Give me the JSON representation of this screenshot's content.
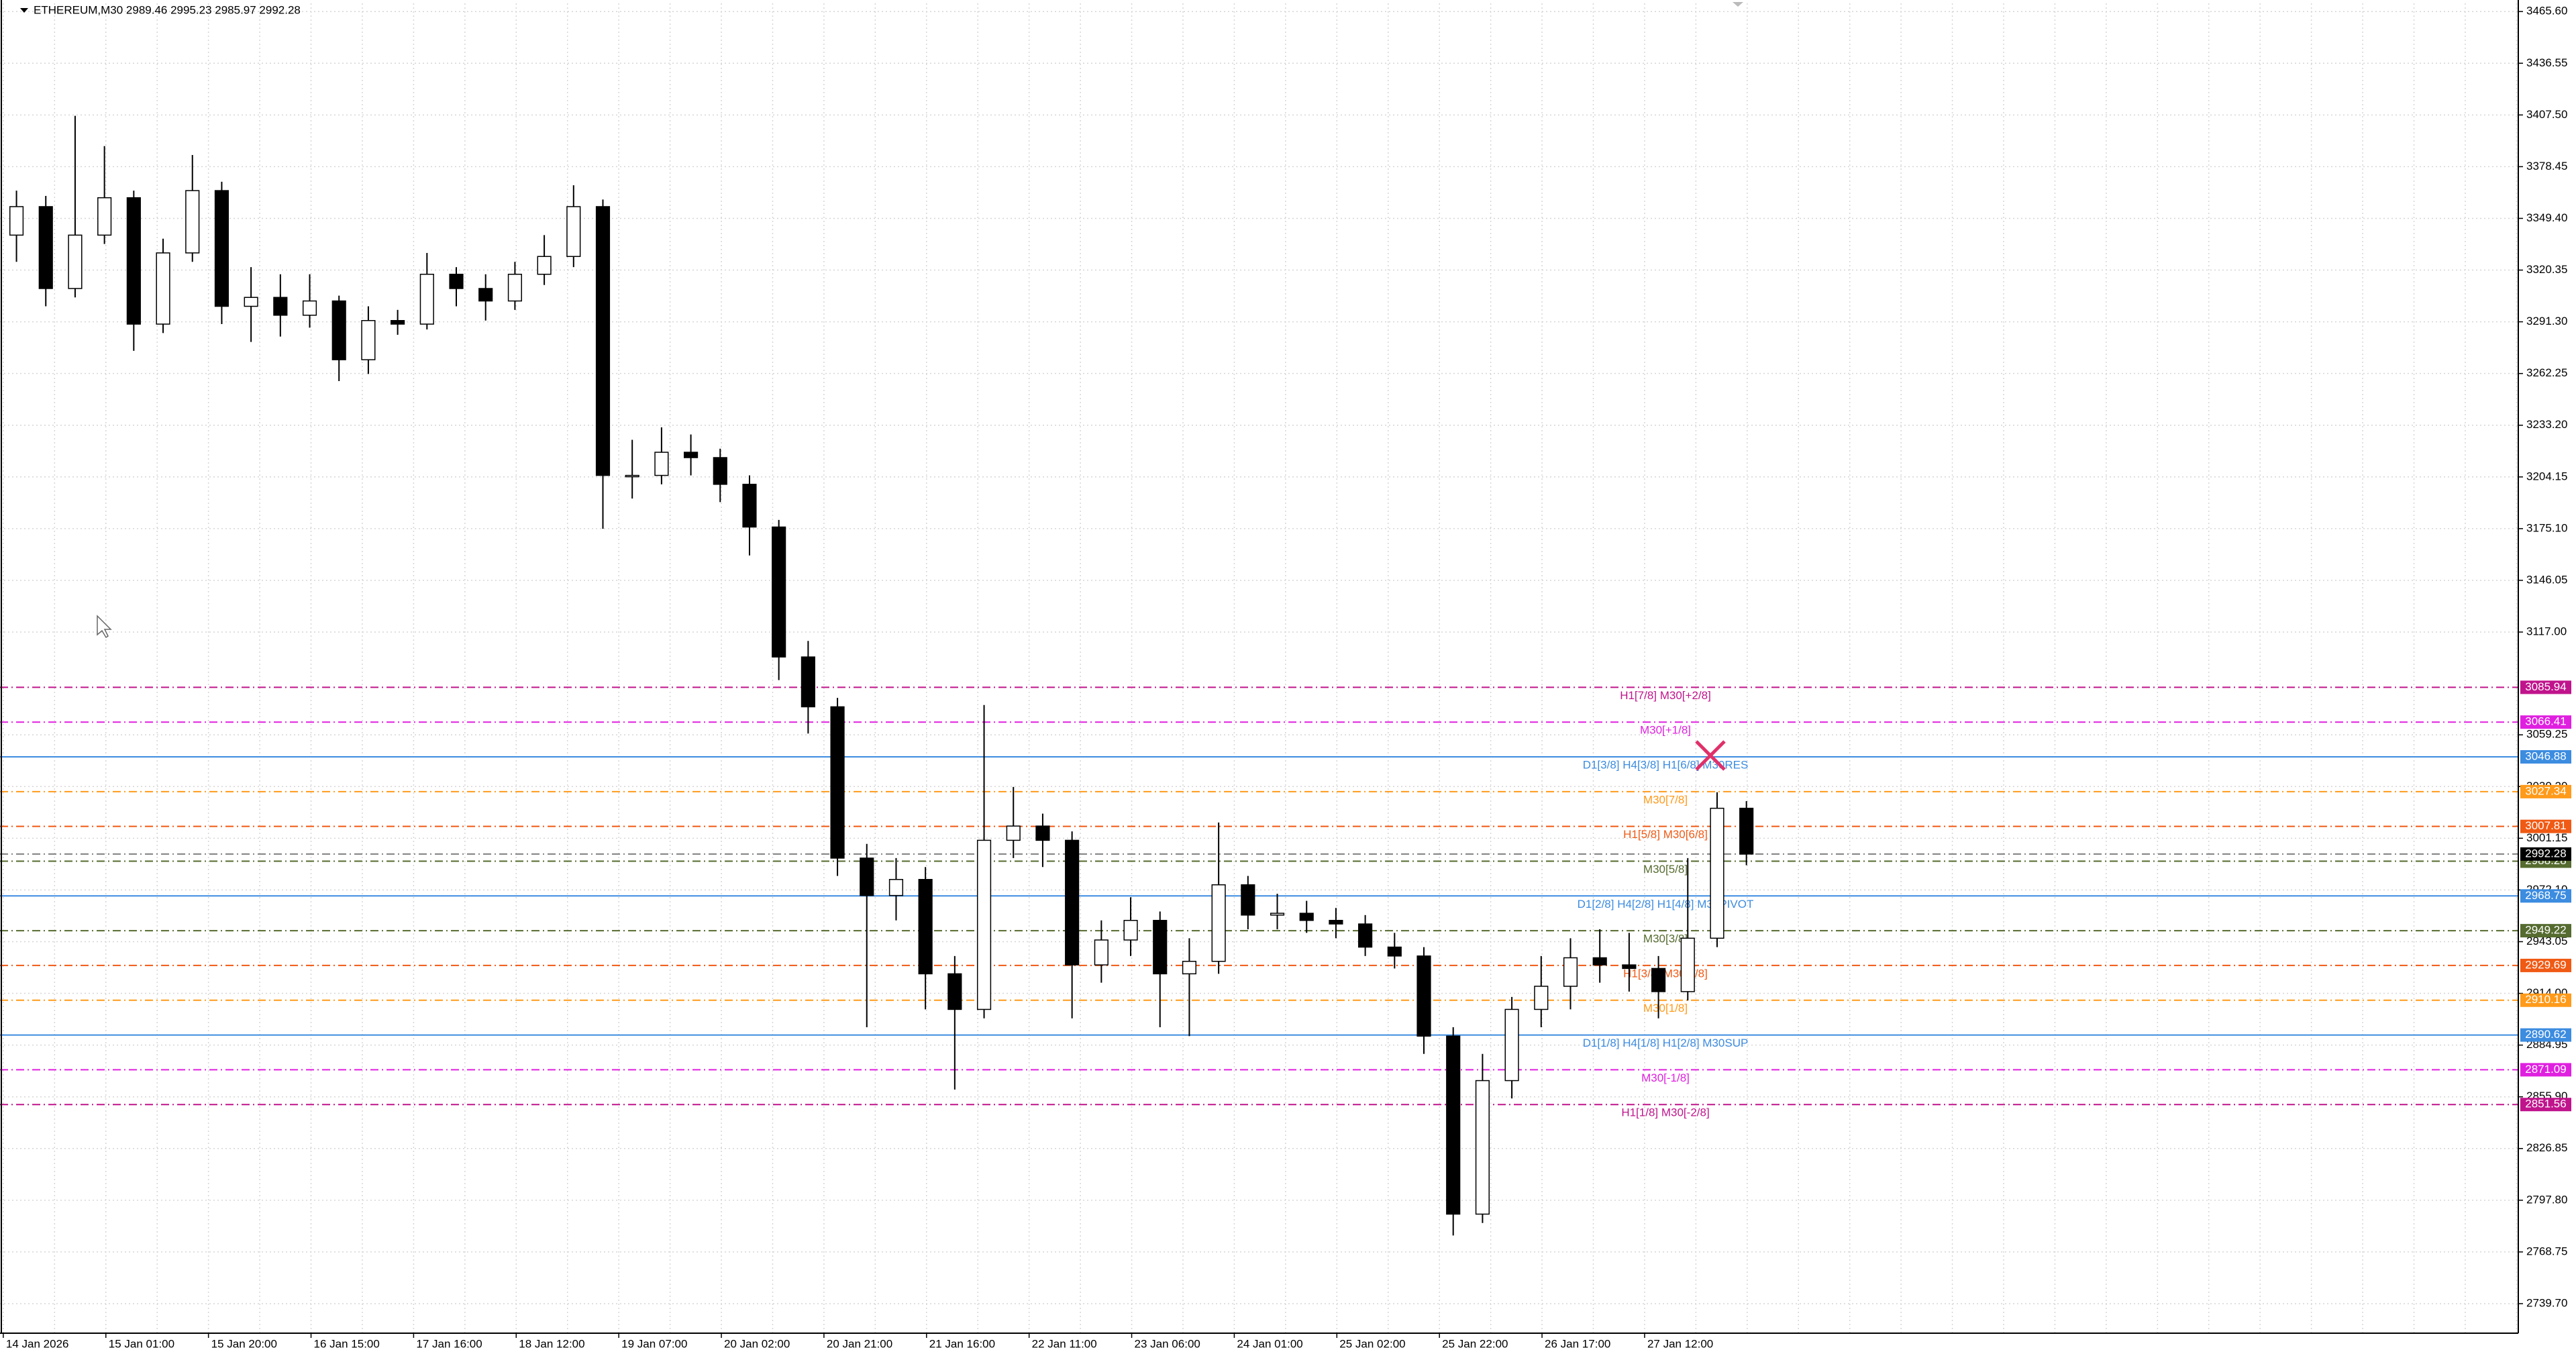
{
  "chart_data": {
    "type": "candlestick",
    "title": "ETHEREUM,M30  2989.46 2995.23 2985.97 2992.28",
    "categories": [
      "14 Jan 2026",
      "15 Jan 01:00",
      "15 Jan 20:00",
      "16 Jan 15:00",
      "17 Jan 16:00",
      "18 Jan 12:00",
      "19 Jan 07:00",
      "20 Jan 02:00",
      "20 Jan 21:00",
      "21 Jan 16:00",
      "22 Jan 11:00",
      "23 Jan 06:00",
      "24 Jan 01:00",
      "25 Jan 02:00",
      "25 Jan 22:00",
      "26 Jan 17:00",
      "27 Jan 12:00"
    ],
    "ylim": [
      2723.1,
      3470.2
    ],
    "yticks": [
      {
        "value": 3465.6,
        "label": "3465.60"
      },
      {
        "value": 3436.55,
        "label": "3436.55"
      },
      {
        "value": 3407.5,
        "label": "3407.50"
      },
      {
        "value": 3378.45,
        "label": "3378.45"
      },
      {
        "value": 3349.4,
        "label": "3349.40"
      },
      {
        "value": 3320.35,
        "label": "3320.35"
      },
      {
        "value": 3291.3,
        "label": "3291.30"
      },
      {
        "value": 3262.25,
        "label": "3262.25"
      },
      {
        "value": 3233.2,
        "label": "3233.20"
      },
      {
        "value": 3204.15,
        "label": "3204.15"
      },
      {
        "value": 3175.1,
        "label": "3175.10"
      },
      {
        "value": 3146.05,
        "label": "3146.05"
      },
      {
        "value": 3117.0,
        "label": "3117.00"
      },
      {
        "value": 3059.25,
        "label": "3059.25"
      },
      {
        "value": 3030.2,
        "label": "3030.20"
      },
      {
        "value": 3001.15,
        "label": "3001.15"
      },
      {
        "value": 2972.1,
        "label": "2972.10"
      },
      {
        "value": 2943.05,
        "label": "2943.05"
      },
      {
        "value": 2914.0,
        "label": "2914.00"
      },
      {
        "value": 2884.95,
        "label": "2884.95"
      },
      {
        "value": 2855.9,
        "label": "2855.90"
      },
      {
        "value": 2826.85,
        "label": "2826.85"
      },
      {
        "value": 2797.8,
        "label": "2797.80"
      },
      {
        "value": 2768.75,
        "label": "2768.75"
      },
      {
        "value": 2739.7,
        "label": "2739.70"
      }
    ],
    "grid": true,
    "candles": [
      [
        3340,
        3365,
        3325,
        3356
      ],
      [
        3356,
        3362,
        3300,
        3310
      ],
      [
        3310,
        3407,
        3305,
        3340
      ],
      [
        3340,
        3390,
        3335,
        3361
      ],
      [
        3361,
        3365,
        3275,
        3290
      ],
      [
        3290,
        3338,
        3285,
        3330
      ],
      [
        3330,
        3385,
        3325,
        3365
      ],
      [
        3365,
        3370,
        3290,
        3300
      ],
      [
        3300,
        3322,
        3280,
        3305
      ],
      [
        3305,
        3318,
        3283,
        3295
      ],
      [
        3295,
        3318,
        3288,
        3303
      ],
      [
        3303,
        3306,
        3258,
        3270
      ],
      [
        3270,
        3300,
        3262,
        3292
      ],
      [
        3292,
        3298,
        3284,
        3290
      ],
      [
        3290,
        3330,
        3287,
        3318
      ],
      [
        3318,
        3322,
        3300,
        3310
      ],
      [
        3310,
        3318,
        3292,
        3303
      ],
      [
        3303,
        3325,
        3298,
        3318
      ],
      [
        3318,
        3340,
        3312,
        3328
      ],
      [
        3328,
        3368,
        3322,
        3356
      ],
      [
        3356,
        3360,
        3175,
        3205
      ],
      [
        3205,
        3225,
        3192,
        3205
      ],
      [
        3205,
        3232,
        3200,
        3218
      ],
      [
        3218,
        3228,
        3205,
        3215
      ],
      [
        3215,
        3220,
        3190,
        3200
      ],
      [
        3200,
        3205,
        3160,
        3176
      ],
      [
        3176,
        3180,
        3090,
        3103
      ],
      [
        3103,
        3112,
        3060,
        3075
      ],
      [
        3075,
        3080,
        2980,
        2990
      ],
      [
        2990,
        2998,
        2895,
        2969
      ],
      [
        2969,
        2990,
        2955,
        2978
      ],
      [
        2978,
        2985,
        2905,
        2925
      ],
      [
        2925,
        2935,
        2860,
        2905
      ],
      [
        2905,
        3076,
        2900,
        3000
      ],
      [
        3000,
        3030,
        2990,
        3008
      ],
      [
        3008,
        3015,
        2985,
        3000
      ],
      [
        3000,
        3005,
        2900,
        2930
      ],
      [
        2930,
        2955,
        2920,
        2944
      ],
      [
        2944,
        2968,
        2935,
        2955
      ],
      [
        2955,
        2960,
        2895,
        2925
      ],
      [
        2925,
        2945,
        2890,
        2932
      ],
      [
        2932,
        3010,
        2925,
        2975
      ],
      [
        2975,
        2980,
        2950,
        2958
      ],
      [
        2958,
        2970,
        2950,
        2959
      ],
      [
        2959,
        2966,
        2948,
        2955
      ],
      [
        2955,
        2962,
        2945,
        2953
      ],
      [
        2953,
        2958,
        2935,
        2940
      ],
      [
        2940,
        2948,
        2928,
        2935
      ],
      [
        2935,
        2940,
        2880,
        2890
      ],
      [
        2890,
        2895,
        2778,
        2790
      ],
      [
        2790,
        2880,
        2785,
        2865
      ],
      [
        2865,
        2912,
        2855,
        2905
      ],
      [
        2905,
        2935,
        2895,
        2918
      ],
      [
        2918,
        2945,
        2905,
        2934
      ],
      [
        2934,
        2950,
        2920,
        2930
      ],
      [
        2930,
        2948,
        2915,
        2928
      ],
      [
        2928,
        2935,
        2900,
        2915
      ],
      [
        2915,
        2990,
        2910,
        2945
      ],
      [
        2945,
        3027,
        2940,
        3018
      ],
      [
        3018,
        3022,
        2986,
        2992.28
      ]
    ],
    "bid": 2992.28,
    "levels": [
      {
        "label": "H1[7/8] M30[+2/8]",
        "value": 3085.94,
        "color": "#c0148c",
        "style": "dashdot"
      },
      {
        "label": "M30[+1/8]",
        "value": 3066.41,
        "color": "#e020e0",
        "style": "dashdot"
      },
      {
        "label": "D1[3/8] H4[3/8] H1[6/8] M30RES",
        "value": 3046.88,
        "color": "#3c8ce0",
        "style": "solid"
      },
      {
        "label": "M30[7/8]",
        "value": 3027.34,
        "color": "#ff9a1a",
        "style": "dashdot"
      },
      {
        "label": "H1[5/8] M30[6/8]",
        "value": 3007.81,
        "color": "#f05a14",
        "style": "dashdot"
      },
      {
        "label": "M30[5/8]",
        "value": 2988.28,
        "color": "#556b2f",
        "style": "dashdot"
      },
      {
        "label": "D1[2/8] H4[2/8] H1[4/8] M30PIVOT",
        "value": 2968.75,
        "color": "#3c8ce0",
        "style": "solid"
      },
      {
        "label": "M30[3/8]",
        "value": 2949.22,
        "color": "#556b2f",
        "style": "dashdot"
      },
      {
        "label": "H1[3/8] M30[2/8]",
        "value": 2929.69,
        "color": "#f05a14",
        "style": "dashdot"
      },
      {
        "label": "M30[1/8]",
        "value": 2910.16,
        "color": "#ff9a1a",
        "style": "dashdot"
      },
      {
        "label": "D1[1/8] H4[1/8] H1[2/8] M30SUP",
        "value": 2890.62,
        "color": "#3c8ce0",
        "style": "solid"
      },
      {
        "label": "M30[-1/8]",
        "value": 2871.09,
        "color": "#e020e0",
        "style": "dashdot"
      },
      {
        "label": "H1[1/8] M30[-2/8]",
        "value": 2851.56,
        "color": "#c0148c",
        "style": "dashdot"
      }
    ]
  }
}
